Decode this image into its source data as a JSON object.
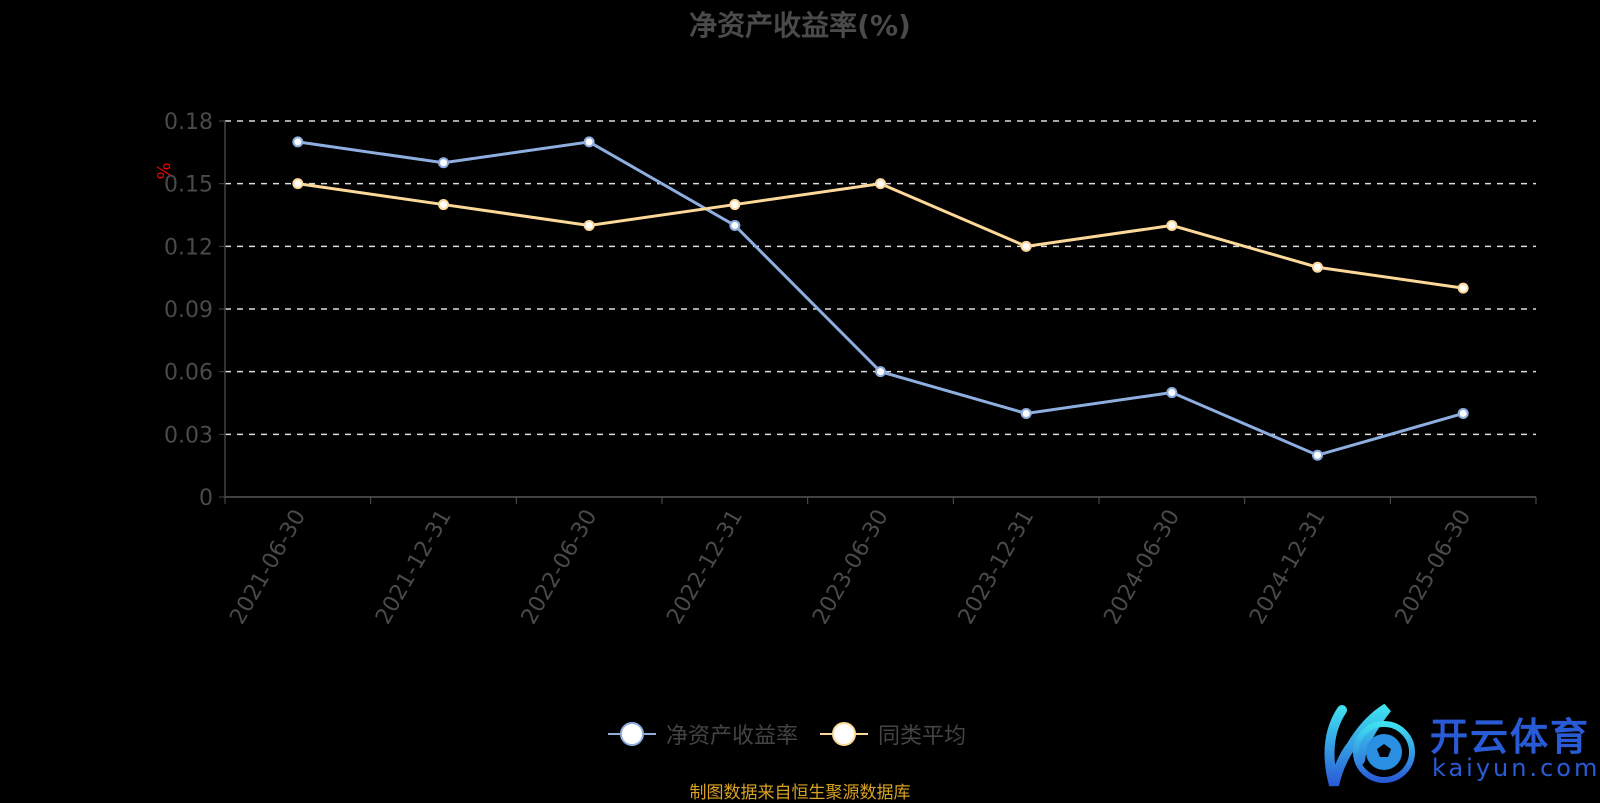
{
  "chart_data": {
    "type": "line",
    "title": "净资产收益率(%)",
    "ylabel": "%",
    "categories": [
      "2021-06-30",
      "2021-12-31",
      "2022-06-30",
      "2022-12-31",
      "2023-06-30",
      "2023-12-31",
      "2024-06-30",
      "2024-12-31",
      "2025-06-30"
    ],
    "yticks": [
      "0",
      "0.03",
      "0.06",
      "0.09",
      "0.12",
      "0.15",
      "0.18"
    ],
    "ylim": [
      0,
      0.18
    ],
    "grid": true,
    "legend_position": "bottom",
    "series": [
      {
        "name": "净资产收益率",
        "color": "#8eaee0",
        "values": [
          0.17,
          0.16,
          0.17,
          0.13,
          0.06,
          0.04,
          0.05,
          0.02,
          0.04
        ]
      },
      {
        "name": "同类平均",
        "color": "#fcd899",
        "values": [
          0.15,
          0.14,
          0.13,
          0.14,
          0.15,
          0.12,
          0.13,
          0.11,
          0.1
        ]
      }
    ]
  },
  "source": "制图数据来自恒生聚源数据库",
  "logo": {
    "name": "开云体育",
    "url_text": "kaiyun.com"
  }
}
